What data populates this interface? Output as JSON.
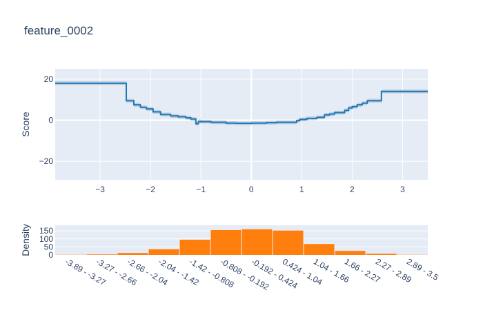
{
  "chart_data": [
    {
      "type": "line",
      "title": "feature_0002",
      "ylabel": "Score",
      "xlim": [
        -3.89,
        3.5
      ],
      "ylim": [
        -29,
        25
      ],
      "xticks": [
        -3,
        -2,
        -1,
        0,
        1,
        2,
        3
      ],
      "yticks": [
        -20,
        0,
        20
      ],
      "grid": true,
      "colors": {
        "line": "#1f77b4",
        "band": "#a9bfd6",
        "plot_bg": "#e5ecf6",
        "grid": "#ffffff"
      },
      "series": [
        {
          "x": [
            -3.89,
            -2.48,
            -2.48,
            -2.33,
            -2.33,
            -2.2,
            -2.2,
            -2.08,
            -2.08,
            -1.95,
            -1.95,
            -1.8,
            -1.8,
            -1.6,
            -1.6,
            -1.45,
            -1.45,
            -1.3,
            -1.3,
            -1.2,
            -1.2,
            -1.1,
            -1.1,
            -1.05,
            -1.05,
            -1.0,
            -1.0,
            -0.8,
            -0.8,
            -0.5,
            -0.5,
            -0.3,
            -0.3,
            0.0,
            0.0,
            0.3,
            0.3,
            0.5,
            0.5,
            0.9,
            0.9,
            0.96,
            0.96,
            1.1,
            1.1,
            1.3,
            1.3,
            1.45,
            1.45,
            1.55,
            1.55,
            1.65,
            1.65,
            1.85,
            1.85,
            1.93,
            1.93,
            2.0,
            2.0,
            2.1,
            2.1,
            2.2,
            2.2,
            2.3,
            2.3,
            2.45,
            2.45,
            2.58,
            2.58,
            3.5
          ],
          "y": [
            18,
            18,
            9.5,
            9.5,
            7.5,
            7.5,
            6.3,
            6.3,
            5.5,
            5.5,
            4.1,
            4.1,
            2.8,
            2.8,
            2.1,
            2.1,
            1.7,
            1.7,
            1.2,
            1.2,
            0.6,
            0.6,
            -1.7,
            -1.7,
            -0.6,
            -0.6,
            -0.7,
            -0.7,
            -1.0,
            -1.0,
            -1.4,
            -1.4,
            -1.5,
            -1.5,
            -1.4,
            -1.4,
            -1.2,
            -1.2,
            -1.0,
            -1.0,
            -0.2,
            -0.2,
            0.4,
            0.4,
            0.9,
            0.9,
            1.4,
            1.4,
            2.6,
            2.6,
            3.0,
            3.0,
            3.7,
            3.7,
            4.8,
            4.8,
            6.0,
            6.0,
            6.6,
            6.6,
            7.5,
            7.5,
            8.3,
            8.3,
            9.5,
            9.5,
            9.5,
            9.5,
            14,
            14
          ],
          "band": 0.9
        }
      ]
    },
    {
      "type": "bar",
      "ylabel": "Density",
      "categories": [
        "-3.89 - -3.27",
        "-3.27 - -2.66",
        "-2.66 - -2.04",
        "-2.04 - -1.42",
        "-1.42 - -0.808",
        "-0.808 - -0.192",
        "-0.192 - 0.424",
        "0.424 - 1.04",
        "1.04 - 1.66",
        "1.66 - 2.27",
        "2.27 - 2.89",
        "2.89 - 3.5"
      ],
      "values": [
        1,
        3,
        12,
        35,
        95,
        155,
        160,
        152,
        68,
        25,
        7,
        1
      ],
      "ylim": [
        0,
        185
      ],
      "yticks": [
        0,
        50,
        100,
        150
      ],
      "colors": {
        "bar": "#ff7f0e",
        "plot_bg": "#e5ecf6"
      }
    }
  ]
}
